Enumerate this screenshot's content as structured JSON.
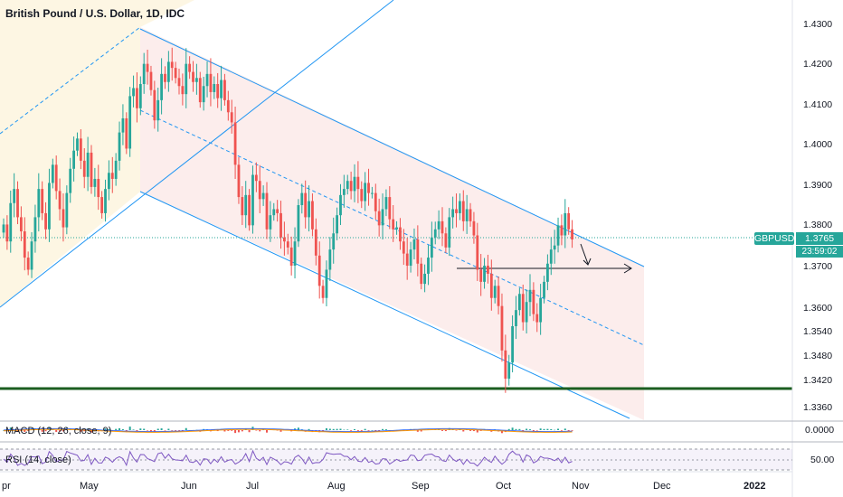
{
  "header": {
    "title": "British Pound / U.S. Dollar, 1D, IDC"
  },
  "symbol_tag": "GBPUSD",
  "last_price": "1.3765",
  "countdown": "23:59:02",
  "indicators": {
    "macd_label": "MACD (12, 26, close, 9)",
    "macd_value": "0.0000",
    "rsi_label": "RSI (14, close)",
    "rsi_value": "50.00"
  },
  "colors": {
    "up": "#26a69a",
    "down": "#ef5350",
    "channel": "#2196f3",
    "support": "#1b5e20",
    "rsi": "#7e57c2",
    "macd": "#ff9800"
  },
  "chart_data": {
    "type": "candlestick",
    "title": "British Pound / U.S. Dollar, 1D, IDC",
    "x_ticks": [
      "pr",
      "May",
      "Jun",
      "Jul",
      "Aug",
      "Sep",
      "Oct",
      "Nov",
      "Dec",
      "2022"
    ],
    "y_ticks": [
      "1.4300",
      "1.4200",
      "1.4100",
      "1.4000",
      "1.3900",
      "1.3800",
      "1.3700",
      "1.3600",
      "1.3540",
      "1.3480",
      "1.3420",
      "1.3360"
    ],
    "ylim": [
      1.332,
      1.432
    ],
    "grid": false,
    "last_close": 1.3765,
    "support_level": 1.3405,
    "closes": [
      1.3802,
      1.376,
      1.3855,
      1.389,
      1.382,
      1.3785,
      1.372,
      1.369,
      1.376,
      1.382,
      1.389,
      1.383,
      1.379,
      1.3905,
      1.395,
      1.3885,
      1.384,
      1.3795,
      1.388,
      1.394,
      1.3985,
      1.4015,
      1.396,
      1.392,
      1.398,
      1.3895,
      1.3915,
      1.387,
      1.383,
      1.389,
      1.393,
      1.3915,
      1.396,
      1.403,
      1.4065,
      1.399,
      1.412,
      1.414,
      1.409,
      1.415,
      1.42,
      1.418,
      1.4135,
      1.406,
      1.411,
      1.4175,
      1.4155,
      1.4205,
      1.419,
      1.4165,
      1.4145,
      1.4125,
      1.42,
      1.418,
      1.4155,
      1.4165,
      1.4105,
      1.4145,
      1.4175,
      1.413,
      1.415,
      1.4115,
      1.416,
      1.411,
      1.408,
      1.4055,
      1.395,
      1.387,
      1.3825,
      1.3875,
      1.38,
      1.3925,
      1.391,
      1.3865,
      1.388,
      1.379,
      1.3825,
      1.384,
      1.383,
      1.377,
      1.376,
      1.3745,
      1.37,
      1.376,
      1.385,
      1.388,
      1.382,
      1.386,
      1.379,
      1.3725,
      1.365,
      1.362,
      1.369,
      1.374,
      1.378,
      1.3825,
      1.3875,
      1.389,
      1.391,
      1.3885,
      1.392,
      1.389,
      1.386,
      1.3905,
      1.388,
      1.388,
      1.3835,
      1.38,
      1.384,
      1.387,
      1.3815,
      1.379,
      1.3795,
      1.376,
      1.373,
      1.37,
      1.374,
      1.3765,
      1.3705,
      1.3655,
      1.368,
      1.372,
      1.377,
      1.379,
      1.381,
      1.378,
      1.3745,
      1.382,
      1.384,
      1.383,
      1.386,
      1.381,
      1.384,
      1.381,
      1.3775,
      1.369,
      1.366,
      1.37,
      1.368,
      1.362,
      1.365,
      1.36,
      1.349,
      1.342,
      1.346,
      1.355,
      1.359,
      1.363,
      1.356,
      1.361,
      1.364,
      1.358,
      1.356,
      1.362,
      1.366,
      1.3705,
      1.374,
      1.375,
      1.38,
      1.3775,
      1.383,
      1.379,
      1.3765
    ]
  }
}
